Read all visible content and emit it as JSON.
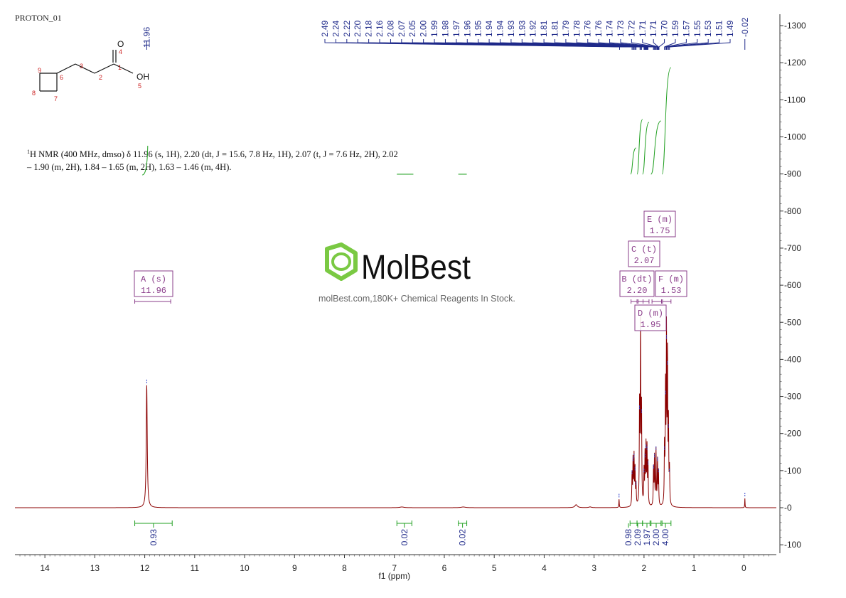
{
  "corner_label": "PROTON_01",
  "summary": {
    "nucleus_mark": "1",
    "line1": "H NMR (400 MHz, dmso) δ 11.96 (s, 1H), 2.20 (dt, J = 15.6, 7.8 Hz, 1H), 2.07 (t, J = 7.6 Hz, 2H), 2.02",
    "line2": "– 1.90 (m, 2H), 1.84 – 1.65 (m, 2H), 1.63 – 1.46 (m, 4H)."
  },
  "watermark": {
    "brand": "MolBest",
    "tagline": "molBest.com,180K+ Chemical Reagents In Stock."
  },
  "molecule": {
    "atom_numbers": [
      "1",
      "2",
      "3",
      "4",
      "5",
      "6",
      "7",
      "8",
      "9"
    ],
    "atom_O": "O",
    "atom_OH": "OH"
  },
  "chart_data": {
    "type": "line",
    "xlabel": "f1 (ppm)",
    "xlim": [
      14.6,
      -0.65
    ],
    "ylim": [
      -120,
      1330
    ],
    "x_ticks": [
      14,
      13,
      12,
      11,
      10,
      9,
      8,
      7,
      6,
      5,
      4,
      3,
      2,
      1,
      0
    ],
    "y_ticks": [
      -100,
      0,
      100,
      200,
      300,
      400,
      500,
      600,
      700,
      800,
      900,
      1000,
      1100,
      1200,
      1300
    ],
    "colors": {
      "spectrum": "#8b0000",
      "integral": "#22a022",
      "peak_labels": "#1f2a8a",
      "multiplet_boxes": "#8a3c8a"
    },
    "peaks": [
      {
        "ppm": 11.96,
        "height": 330,
        "width": 0.012
      },
      {
        "ppm": 6.85,
        "height": 2,
        "width": 0.05
      },
      {
        "ppm": 5.62,
        "height": 2,
        "width": 0.05
      },
      {
        "ppm": 3.36,
        "height": 8,
        "width": 0.03
      },
      {
        "ppm": 3.08,
        "height": 2,
        "width": 0.03
      },
      {
        "ppm": 2.5,
        "height": 22,
        "width": 0.005
      },
      {
        "ppm": 2.24,
        "height": 85,
        "width": 0.006
      },
      {
        "ppm": 2.22,
        "height": 120,
        "width": 0.006
      },
      {
        "ppm": 2.2,
        "height": 130,
        "width": 0.006
      },
      {
        "ppm": 2.18,
        "height": 95,
        "width": 0.006
      },
      {
        "ppm": 2.16,
        "height": 55,
        "width": 0.006
      },
      {
        "ppm": 2.09,
        "height": 260,
        "width": 0.006
      },
      {
        "ppm": 2.07,
        "height": 470,
        "width": 0.006
      },
      {
        "ppm": 2.05,
        "height": 250,
        "width": 0.006
      },
      {
        "ppm": 2.0,
        "height": 90,
        "width": 0.006
      },
      {
        "ppm": 1.98,
        "height": 130,
        "width": 0.006
      },
      {
        "ppm": 1.96,
        "height": 155,
        "width": 0.006
      },
      {
        "ppm": 1.94,
        "height": 150,
        "width": 0.006
      },
      {
        "ppm": 1.92,
        "height": 110,
        "width": 0.006
      },
      {
        "ppm": 1.81,
        "height": 100,
        "width": 0.006
      },
      {
        "ppm": 1.79,
        "height": 130,
        "width": 0.006
      },
      {
        "ppm": 1.76,
        "height": 150,
        "width": 0.006
      },
      {
        "ppm": 1.73,
        "height": 120,
        "width": 0.006
      },
      {
        "ppm": 1.71,
        "height": 90,
        "width": 0.006
      },
      {
        "ppm": 1.59,
        "height": 150,
        "width": 0.006
      },
      {
        "ppm": 1.57,
        "height": 300,
        "width": 0.006
      },
      {
        "ppm": 1.55,
        "height": 450,
        "width": 0.006
      },
      {
        "ppm": 1.53,
        "height": 380,
        "width": 0.006
      },
      {
        "ppm": 1.51,
        "height": 210,
        "width": 0.006
      },
      {
        "ppm": 1.49,
        "height": 90,
        "width": 0.006
      },
      {
        "ppm": -0.02,
        "height": 25,
        "width": 0.004
      }
    ],
    "peak_labels_main": [
      "11.96"
    ],
    "peak_labels_cluster": [
      "2.49",
      "2.24",
      "2.22",
      "2.20",
      "2.18",
      "2.16",
      "2.08",
      "2.07",
      "2.05",
      "2.00",
      "1.99",
      "1.98",
      "1.97",
      "1.96",
      "1.95",
      "1.94",
      "1.94",
      "1.93",
      "1.93",
      "1.92",
      "1.81",
      "1.81",
      "1.79",
      "1.78",
      "1.76",
      "1.76",
      "1.74",
      "1.73",
      "1.72",
      "1.71",
      "1.71",
      "1.70",
      "1.59",
      "1.57",
      "1.55",
      "1.53",
      "1.51",
      "1.49"
    ],
    "peak_labels_tms": [
      "-0.02"
    ],
    "cluster_targets": [
      2.49,
      2.24,
      2.22,
      2.2,
      2.18,
      2.16,
      2.08,
      2.07,
      2.05,
      2.0,
      1.99,
      1.98,
      1.97,
      1.96,
      1.95,
      1.94,
      1.94,
      1.93,
      1.93,
      1.92,
      1.81,
      1.81,
      1.79,
      1.78,
      1.76,
      1.76,
      1.74,
      1.73,
      1.72,
      1.71,
      1.71,
      1.7,
      1.59,
      1.57,
      1.55,
      1.53,
      1.51,
      1.49
    ],
    "integrals": [
      {
        "from": 12.2,
        "to": 11.45,
        "value": "0.93"
      },
      {
        "from": 6.95,
        "to": 6.65,
        "value": "0.02"
      },
      {
        "from": 5.72,
        "to": 5.55,
        "value": "0.02"
      },
      {
        "from": 2.28,
        "to": 2.14,
        "value": "0.98"
      },
      {
        "from": 2.14,
        "to": 2.03,
        "value": "2.09"
      },
      {
        "from": 2.03,
        "to": 1.88,
        "value": "1.97"
      },
      {
        "from": 1.86,
        "to": 1.66,
        "value": "2.00"
      },
      {
        "from": 1.64,
        "to": 1.46,
        "value": "4.00"
      }
    ],
    "multiplets": [
      {
        "label": "A (s)",
        "shift": "11.96",
        "from": 12.2,
        "to": 11.48
      },
      {
        "label": "B (dt)",
        "shift": "2.20",
        "from": 2.26,
        "to": 2.14
      },
      {
        "label": "C (t)",
        "shift": "2.07",
        "from": 2.12,
        "to": 2.02
      },
      {
        "label": "D (m)",
        "shift": "1.95",
        "from": 2.02,
        "to": 1.9
      },
      {
        "label": "E (m)",
        "shift": "1.75",
        "from": 1.84,
        "to": 1.65
      },
      {
        "label": "F (m)",
        "shift": "1.53",
        "from": 1.63,
        "to": 1.46
      }
    ]
  }
}
